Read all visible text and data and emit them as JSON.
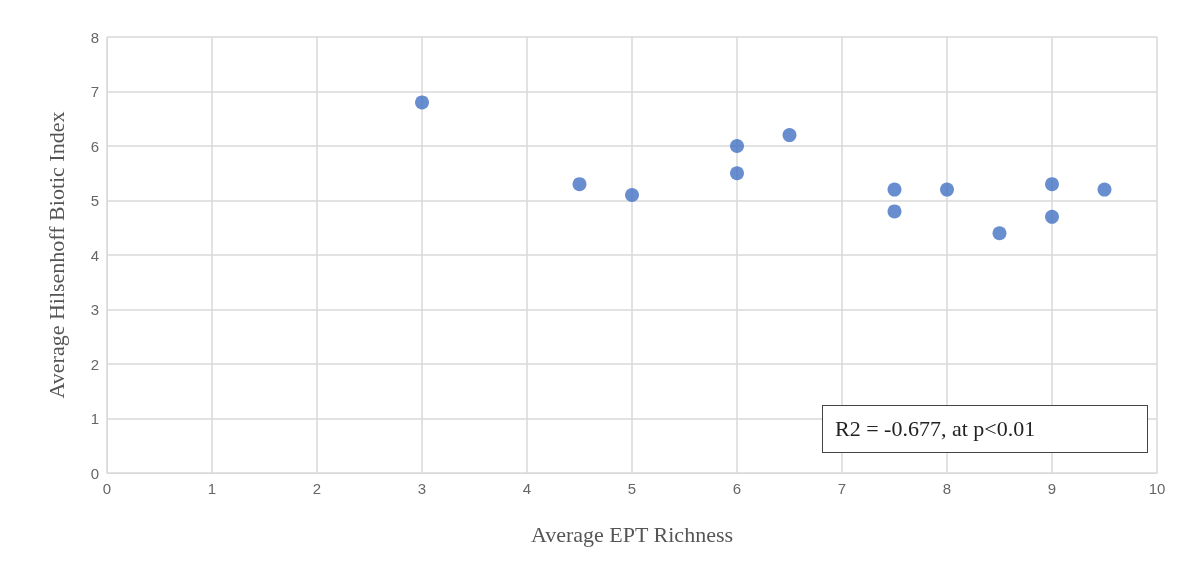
{
  "chart_data": {
    "type": "scatter",
    "xlabel": "Average EPT Richness",
    "ylabel": "Average Hilsenhoff Biotic Index",
    "x": [
      3,
      4.5,
      5,
      6,
      6,
      6.5,
      7.5,
      7.5,
      8,
      8.5,
      9,
      9,
      9.5
    ],
    "series": [
      {
        "color": "#4472c4",
        "values": [
          6.8,
          5.3,
          5.1,
          6.0,
          5.5,
          6.2,
          5.2,
          4.8,
          5.2,
          4.4,
          5.3,
          4.7,
          5.2
        ]
      }
    ],
    "xlim": [
      0,
      10
    ],
    "xticks": [
      0,
      1,
      2,
      3,
      4,
      5,
      6,
      7,
      8,
      9,
      10
    ],
    "ylim": [
      0,
      8
    ],
    "yticks": [
      0,
      1,
      2,
      3,
      4,
      5,
      6,
      7,
      8
    ],
    "grid": true,
    "marker": "circle",
    "annotations": [
      "R2 = -0.677, at p<0.01"
    ]
  }
}
